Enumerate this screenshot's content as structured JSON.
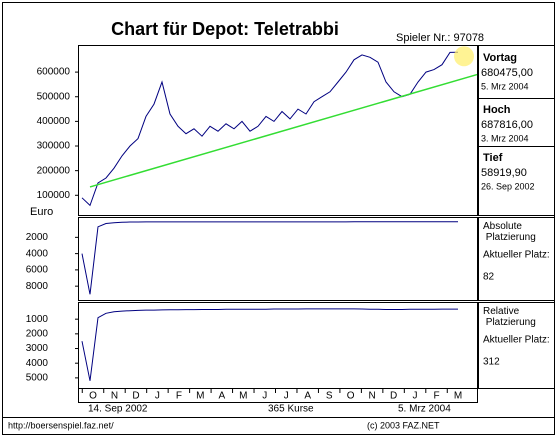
{
  "chart_data": [
    {
      "type": "line",
      "title": "Chart für Depot:  Teletrabbi",
      "subtitle": "Spieler Nr.: 97078",
      "y_unit": "Euro",
      "series": [
        {
          "color": "#000080",
          "values": [
            90000,
            59000,
            150000,
            170000,
            210000,
            260000,
            300000,
            330000,
            420000,
            470000,
            560000,
            430000,
            380000,
            350000,
            370000,
            340000,
            380000,
            360000,
            390000,
            370000,
            400000,
            360000,
            380000,
            420000,
            400000,
            440000,
            410000,
            450000,
            430000,
            480000,
            500000,
            520000,
            560000,
            600000,
            650000,
            670000,
            660000,
            640000,
            560000,
            520000,
            500000,
            510000,
            560000,
            600000,
            610000,
            630000,
            680000,
            680475
          ]
        }
      ],
      "trend_line": {
        "color": "#33dd33",
        "values": [
          134000,
          590000
        ]
      },
      "ylim": [
        20000,
        710000
      ],
      "yticks": [
        100000,
        200000,
        300000,
        400000,
        500000,
        600000
      ],
      "info": [
        {
          "label": "Vortag",
          "value": "680475,00",
          "date": "5. Mrz 2004"
        },
        {
          "label": "Hoch",
          "value": "687816,00",
          "date": "3. Mrz 2004"
        },
        {
          "label": "Tief",
          "value": "58919,90",
          "date": "26. Sep 2002"
        }
      ]
    },
    {
      "type": "line",
      "label": "Absolute Platzierung",
      "current_label": "Aktueller Platz:",
      "current": "82",
      "series": [
        {
          "color": "#000080",
          "values": [
            4000,
            9000,
            700,
            300,
            200,
            150,
            120,
            110,
            100,
            100,
            100,
            100,
            100,
            100,
            100,
            100,
            100,
            100,
            100,
            100,
            100,
            100,
            100,
            100,
            100,
            100,
            100,
            100,
            100,
            100,
            100,
            100,
            100,
            100,
            90,
            90,
            90,
            90,
            90,
            90,
            90,
            90,
            90,
            85,
            85,
            82,
            82,
            82
          ]
        }
      ],
      "ylim": [
        9700,
        -500
      ],
      "yticks": [
        2000,
        4000,
        6000,
        8000
      ]
    },
    {
      "type": "line",
      "label": "Relative Platzierung",
      "current_label": "Aktueller Platz:",
      "current": "312",
      "series": [
        {
          "color": "#000080",
          "values": [
            2500,
            5200,
            900,
            600,
            500,
            450,
            420,
            400,
            380,
            380,
            370,
            360,
            360,
            350,
            350,
            340,
            340,
            340,
            330,
            330,
            330,
            320,
            320,
            320,
            310,
            310,
            310,
            310,
            300,
            300,
            300,
            300,
            300,
            300,
            300,
            310,
            320,
            330,
            340,
            340,
            340,
            330,
            330,
            320,
            320,
            315,
            312,
            312
          ]
        }
      ],
      "ylim": [
        5690,
        -170
      ],
      "yticks": [
        1000,
        2000,
        3000,
        4000,
        5000
      ]
    },
    {
      "type": "axis",
      "months": [
        "O",
        "N",
        "D",
        "J",
        "F",
        "M",
        "A",
        "M",
        "J",
        "J",
        "A",
        "S",
        "O",
        "N",
        "D",
        "J",
        "F",
        "M"
      ],
      "start": "14. Sep 2002",
      "count": "365 Kurse",
      "end": "5. Mrz 2004",
      "footer_left": "http://boersenspiel.faz.net/",
      "footer_right": "(c) 2003 FAZ.NET"
    }
  ]
}
